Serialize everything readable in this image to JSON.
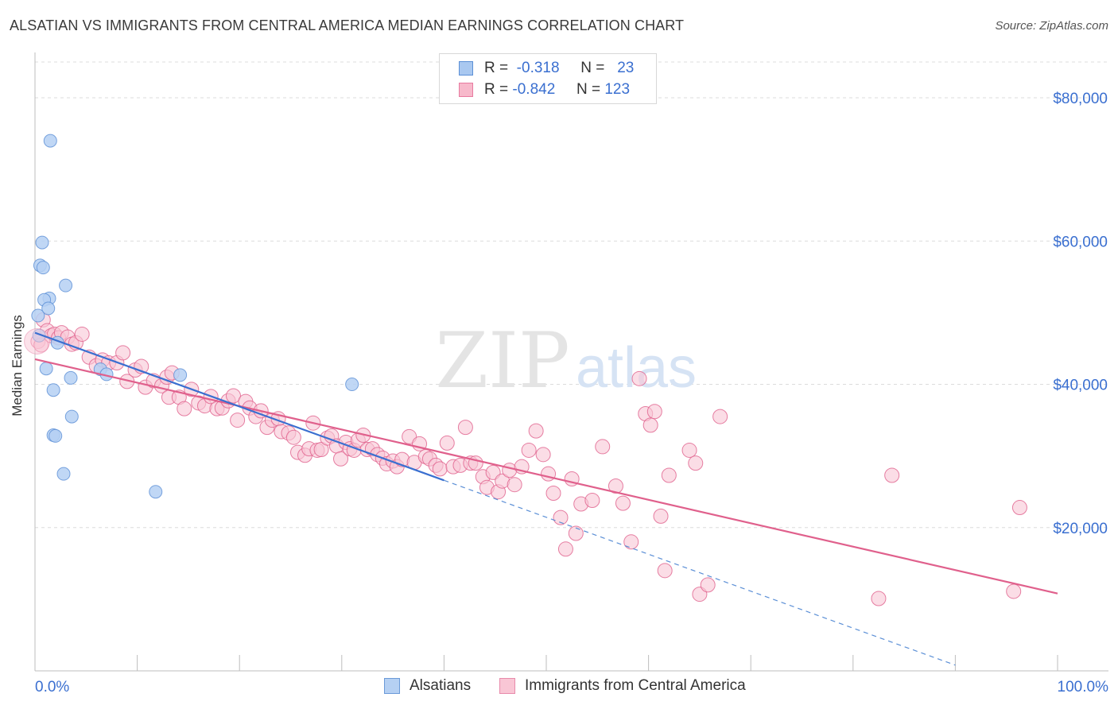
{
  "title": "ALSATIAN VS IMMIGRANTS FROM CENTRAL AMERICA MEDIAN EARNINGS CORRELATION CHART",
  "source": "Source: ZipAtlas.com",
  "watermark": {
    "zip": "ZIP",
    "atlas": "atlas"
  },
  "legend_stats": [
    {
      "r_label": "R =",
      "r_value": "-0.318",
      "n_label": "N =",
      "n_value": "23",
      "color": "#a9c8f0",
      "border": "#5b8fd6"
    },
    {
      "r_label": "R =",
      "r_value": "-0.842",
      "n_label": "N =",
      "n_value": "123",
      "color": "#f7b9cb",
      "border": "#e87aa0"
    }
  ],
  "bottom_legend": [
    {
      "label": "Alsatians",
      "color": "#b5d0f3",
      "border": "#6b9ad8"
    },
    {
      "label": "Immigrants from Central America",
      "color": "#f9c6d5",
      "border": "#e88aab"
    }
  ],
  "chart_data": {
    "type": "scatter",
    "ylabel": "Median Earnings",
    "xlim": [
      0,
      100
    ],
    "ylim": [
      0,
      85000
    ],
    "x_tick_labels": [
      "0.0%",
      "100.0%"
    ],
    "y_ticks": [
      20000,
      40000,
      60000,
      80000
    ],
    "y_tick_labels": [
      "$20,000",
      "$40,000",
      "$60,000",
      "$80,000"
    ],
    "grid": true,
    "series": [
      {
        "name": "Alsatians",
        "color": "#5b8fd6",
        "fill": "#b5d0f3",
        "trend": {
          "x": [
            0,
            40
          ],
          "y": [
            47200,
            26600
          ],
          "dashed_to": [
            90,
            800
          ]
        },
        "points": [
          [
            1.5,
            74000
          ],
          [
            0.7,
            59800
          ],
          [
            0.5,
            56600
          ],
          [
            0.8,
            56300
          ],
          [
            3.0,
            53800
          ],
          [
            1.4,
            52000
          ],
          [
            0.9,
            51800
          ],
          [
            1.3,
            50600
          ],
          [
            0.3,
            49600
          ],
          [
            0.4,
            46800
          ],
          [
            2.2,
            45800
          ],
          [
            1.1,
            42200
          ],
          [
            6.4,
            42100
          ],
          [
            7.0,
            41400
          ],
          [
            14.2,
            41300
          ],
          [
            3.5,
            40900
          ],
          [
            31.0,
            40000
          ],
          [
            1.8,
            39200
          ],
          [
            3.6,
            35500
          ],
          [
            1.8,
            32900
          ],
          [
            2.0,
            32800
          ],
          [
            2.8,
            27500
          ],
          [
            11.8,
            25000
          ]
        ]
      },
      {
        "name": "Immigrants from Central America",
        "color": "#e0608c",
        "fill": "#f9c6d5",
        "trend": {
          "x": [
            0,
            100
          ],
          "y": [
            43500,
            10800
          ]
        },
        "points": [
          [
            0.3,
            46000
          ],
          [
            0.6,
            45500
          ],
          [
            0.8,
            49000
          ],
          [
            1.2,
            47500
          ],
          [
            1.6,
            46800
          ],
          [
            1.9,
            47000
          ],
          [
            2.3,
            46500
          ],
          [
            2.6,
            47200
          ],
          [
            3.2,
            46600
          ],
          [
            3.6,
            45600
          ],
          [
            4.0,
            45800
          ],
          [
            4.6,
            47000
          ],
          [
            5.3,
            43800
          ],
          [
            6.0,
            42600
          ],
          [
            6.6,
            43400
          ],
          [
            7.2,
            43000
          ],
          [
            8.0,
            43000
          ],
          [
            8.6,
            44400
          ],
          [
            9.0,
            40400
          ],
          [
            9.8,
            42000
          ],
          [
            10.4,
            42500
          ],
          [
            10.8,
            39600
          ],
          [
            11.6,
            40500
          ],
          [
            12.4,
            39800
          ],
          [
            12.9,
            41000
          ],
          [
            13.4,
            41600
          ],
          [
            13.1,
            38200
          ],
          [
            14.1,
            38200
          ],
          [
            14.6,
            36600
          ],
          [
            15.3,
            39300
          ],
          [
            16.0,
            37400
          ],
          [
            16.6,
            37000
          ],
          [
            17.2,
            38300
          ],
          [
            17.8,
            36600
          ],
          [
            18.3,
            36700
          ],
          [
            18.9,
            37700
          ],
          [
            19.4,
            38400
          ],
          [
            19.8,
            35000
          ],
          [
            20.6,
            37600
          ],
          [
            21.0,
            36700
          ],
          [
            21.6,
            35500
          ],
          [
            22.1,
            36300
          ],
          [
            22.7,
            34000
          ],
          [
            23.2,
            35000
          ],
          [
            23.8,
            35200
          ],
          [
            24.1,
            33400
          ],
          [
            24.8,
            33200
          ],
          [
            25.3,
            32600
          ],
          [
            25.7,
            30500
          ],
          [
            26.4,
            30100
          ],
          [
            26.8,
            31000
          ],
          [
            27.2,
            34600
          ],
          [
            27.6,
            30800
          ],
          [
            28.0,
            30900
          ],
          [
            28.6,
            32500
          ],
          [
            29.0,
            32800
          ],
          [
            29.5,
            31400
          ],
          [
            29.9,
            29600
          ],
          [
            30.4,
            31900
          ],
          [
            30.8,
            31000
          ],
          [
            31.2,
            30800
          ],
          [
            31.6,
            32200
          ],
          [
            32.1,
            32900
          ],
          [
            32.5,
            30900
          ],
          [
            33.0,
            31000
          ],
          [
            33.5,
            30200
          ],
          [
            34.0,
            29700
          ],
          [
            34.4,
            28900
          ],
          [
            35.0,
            29300
          ],
          [
            35.4,
            28500
          ],
          [
            35.9,
            29500
          ],
          [
            36.6,
            32700
          ],
          [
            37.1,
            29100
          ],
          [
            37.6,
            31700
          ],
          [
            38.2,
            29900
          ],
          [
            38.6,
            29600
          ],
          [
            39.2,
            28700
          ],
          [
            39.6,
            28200
          ],
          [
            40.3,
            31800
          ],
          [
            40.9,
            28500
          ],
          [
            41.6,
            28700
          ],
          [
            42.1,
            34000
          ],
          [
            42.6,
            29000
          ],
          [
            43.1,
            29000
          ],
          [
            43.8,
            27100
          ],
          [
            44.2,
            25600
          ],
          [
            44.8,
            27700
          ],
          [
            45.3,
            25000
          ],
          [
            45.7,
            26500
          ],
          [
            46.4,
            28000
          ],
          [
            46.9,
            26000
          ],
          [
            47.6,
            28500
          ],
          [
            48.3,
            30800
          ],
          [
            49.0,
            33500
          ],
          [
            49.7,
            30200
          ],
          [
            50.2,
            27500
          ],
          [
            50.7,
            24800
          ],
          [
            51.4,
            21400
          ],
          [
            51.9,
            17000
          ],
          [
            52.5,
            26800
          ],
          [
            52.9,
            19200
          ],
          [
            53.4,
            23300
          ],
          [
            54.5,
            23800
          ],
          [
            55.5,
            31300
          ],
          [
            56.8,
            25800
          ],
          [
            57.5,
            23400
          ],
          [
            58.3,
            18000
          ],
          [
            59.1,
            40800
          ],
          [
            59.7,
            35900
          ],
          [
            60.6,
            36200
          ],
          [
            61.2,
            21600
          ],
          [
            62.0,
            27300
          ],
          [
            61.6,
            14000
          ],
          [
            64.0,
            30800
          ],
          [
            64.6,
            29000
          ],
          [
            65.0,
            10700
          ],
          [
            65.8,
            12000
          ],
          [
            67.0,
            35500
          ],
          [
            82.5,
            10100
          ],
          [
            83.8,
            27300
          ],
          [
            95.7,
            11100
          ],
          [
            96.3,
            22800
          ],
          [
            60.2,
            34300
          ]
        ]
      }
    ]
  }
}
